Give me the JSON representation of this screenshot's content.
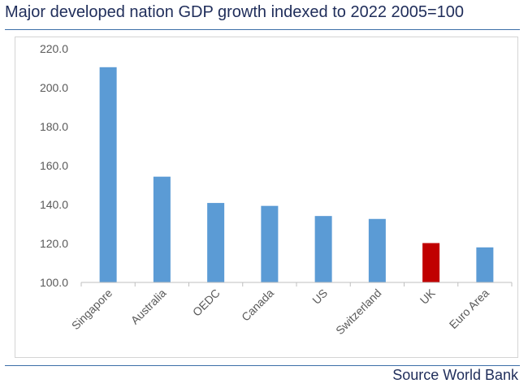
{
  "header": {
    "title": "Major developed nation GDP growth indexed to 2022 2005=100"
  },
  "footer": {
    "source": "Source World Bank"
  },
  "colors": {
    "bar": "#5b9bd5",
    "highlight": "#c00000",
    "title": "#1f2d5a",
    "rule": "#3c6fa8"
  },
  "chart_data": {
    "type": "bar",
    "title": "Major developed nation GDP growth indexed to 2022 2005=100",
    "xlabel": "",
    "ylabel": "",
    "categories": [
      "Singapore",
      "Australia",
      "OEDC",
      "Canada",
      "US",
      "Switzerland",
      "UK",
      "Euro Area"
    ],
    "values": [
      210.5,
      154.3,
      140.8,
      139.3,
      134.1,
      132.6,
      120.2,
      118.0
    ],
    "highlight_category": "UK",
    "ylim": [
      100,
      220
    ],
    "yticks": [
      "100.0",
      "120.0",
      "140.0",
      "160.0",
      "180.0",
      "200.0",
      "220.0"
    ],
    "grid": false,
    "legend": "none"
  }
}
